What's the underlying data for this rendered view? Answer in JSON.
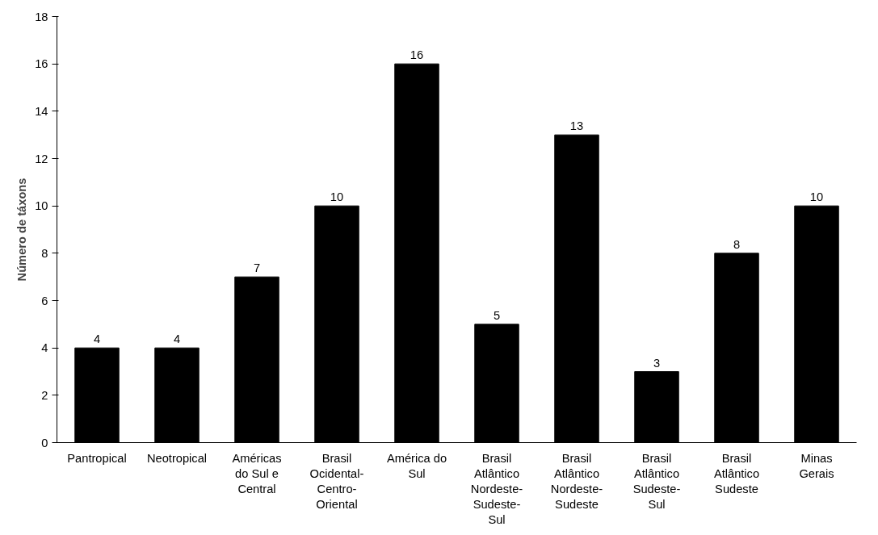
{
  "chart_data": {
    "type": "bar",
    "ylabel": "Número de táxons",
    "categories": [
      "Pantropical",
      "Neotropical",
      "Américas do Sul e Central",
      "Brasil Ocidental-Centro-Oriental",
      "América do Sul",
      "Brasil Atlântico Nordeste-Sudeste-Sul",
      "Brasil Atlântico Nordeste-Sudeste",
      "Brasil Atlântico Sudeste-Sul",
      "Brasil Atlântico Sudeste",
      "Minas Gerais"
    ],
    "values": [
      4,
      4,
      7,
      10,
      16,
      5,
      13,
      3,
      8,
      10
    ],
    "color": "#000000",
    "ylim": [
      0,
      18
    ],
    "yticks": [
      0,
      2,
      4,
      6,
      8,
      10,
      12,
      14,
      16,
      18
    ],
    "grid": false,
    "data_labels": true
  }
}
